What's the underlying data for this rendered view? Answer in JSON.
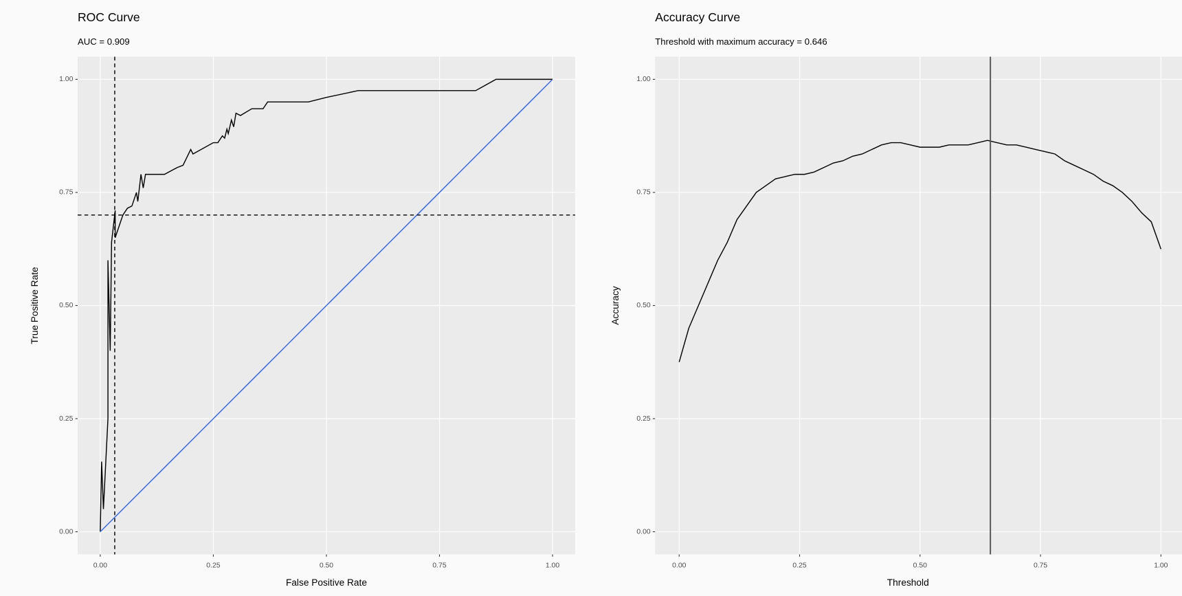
{
  "chart_data": [
    {
      "type": "line",
      "title": "ROC Curve",
      "subtitle": "AUC = 0.909",
      "x_label": "False Positive Rate",
      "y_label": "True Positive Rate",
      "xlim": [
        -0.05,
        1.05
      ],
      "ylim": [
        -0.05,
        1.05
      ],
      "xticks": [
        {
          "value": 0,
          "label": "0.00"
        },
        {
          "value": 0.25,
          "label": "0.25"
        },
        {
          "value": 0.5,
          "label": "0.50"
        },
        {
          "value": 0.75,
          "label": "0.75"
        },
        {
          "value": 1,
          "label": "1.00"
        }
      ],
      "yticks": [
        {
          "value": 0,
          "label": "0.00"
        },
        {
          "value": 0.25,
          "label": "0.25"
        },
        {
          "value": 0.5,
          "label": "0.50"
        },
        {
          "value": 0.75,
          "label": "0.75"
        },
        {
          "value": 1,
          "label": "1.00"
        }
      ],
      "grid": true,
      "series": [
        {
          "color": "#000000",
          "x": [
            0,
            0.003,
            0.007,
            0.017,
            0.017,
            0.022,
            0.025,
            0.033,
            0.033,
            0.05,
            0.06,
            0.07,
            0.08,
            0.083,
            0.09,
            0.095,
            0.1,
            0.142,
            0.17,
            0.183,
            0.2,
            0.205,
            0.25,
            0.26,
            0.27,
            0.275,
            0.28,
            0.283,
            0.29,
            0.295,
            0.3,
            0.31,
            0.335,
            0.36,
            0.37,
            0.46,
            0.5,
            0.57,
            0.83,
            0.875,
            1
          ],
          "values": [
            0,
            0.155,
            0.05,
            0.25,
            0.6,
            0.4,
            0.64,
            0.71,
            0.65,
            0.7,
            0.715,
            0.72,
            0.75,
            0.73,
            0.79,
            0.76,
            0.79,
            0.79,
            0.805,
            0.81,
            0.845,
            0.835,
            0.86,
            0.86,
            0.875,
            0.87,
            0.89,
            0.88,
            0.91,
            0.895,
            0.925,
            0.92,
            0.935,
            0.935,
            0.95,
            0.95,
            0.96,
            0.975,
            0.975,
            1,
            1
          ]
        },
        {
          "color": "#3366ff",
          "x": [
            0,
            1
          ],
          "values": [
            0,
            1
          ]
        }
      ],
      "vline": {
        "value": 0.032,
        "dashed": true,
        "color": "#000000"
      },
      "hline": {
        "value": 0.7,
        "dashed": true,
        "color": "#000000"
      }
    },
    {
      "type": "line",
      "title": "Accuracy Curve",
      "subtitle": "Threshold with maximum accuracy = 0.646",
      "x_label": "Threshold",
      "y_label": "Accuracy",
      "xlim": [
        -0.05,
        1.05
      ],
      "ylim": [
        -0.05,
        1.05
      ],
      "xticks": [
        {
          "value": 0,
          "label": "0.00"
        },
        {
          "value": 0.25,
          "label": "0.25"
        },
        {
          "value": 0.5,
          "label": "0.50"
        },
        {
          "value": 0.75,
          "label": "0.75"
        },
        {
          "value": 1,
          "label": "1.00"
        }
      ],
      "yticks": [
        {
          "value": 0,
          "label": "0.00"
        },
        {
          "value": 0.25,
          "label": "0.25"
        },
        {
          "value": 0.5,
          "label": "0.50"
        },
        {
          "value": 0.75,
          "label": "0.75"
        },
        {
          "value": 1,
          "label": "1.00"
        }
      ],
      "grid": true,
      "series": [
        {
          "color": "#000000",
          "x": [
            0,
            0.02,
            0.04,
            0.06,
            0.08,
            0.1,
            0.12,
            0.14,
            0.16,
            0.18,
            0.2,
            0.22,
            0.24,
            0.26,
            0.28,
            0.3,
            0.32,
            0.34,
            0.36,
            0.38,
            0.4,
            0.42,
            0.44,
            0.46,
            0.48,
            0.5,
            0.52,
            0.54,
            0.56,
            0.58,
            0.6,
            0.62,
            0.64,
            0.66,
            0.68,
            0.7,
            0.72,
            0.74,
            0.76,
            0.78,
            0.8,
            0.82,
            0.84,
            0.86,
            0.88,
            0.9,
            0.92,
            0.94,
            0.96,
            0.98,
            1
          ],
          "values": [
            0.375,
            0.45,
            0.5,
            0.55,
            0.6,
            0.64,
            0.69,
            0.72,
            0.75,
            0.765,
            0.78,
            0.785,
            0.79,
            0.79,
            0.795,
            0.805,
            0.815,
            0.82,
            0.83,
            0.835,
            0.845,
            0.855,
            0.86,
            0.86,
            0.855,
            0.85,
            0.85,
            0.85,
            0.855,
            0.855,
            0.855,
            0.86,
            0.865,
            0.86,
            0.855,
            0.855,
            0.85,
            0.845,
            0.84,
            0.835,
            0.82,
            0.81,
            0.8,
            0.79,
            0.775,
            0.765,
            0.75,
            0.73,
            0.705,
            0.685,
            0.625
          ]
        }
      ],
      "vline": {
        "value": 0.646,
        "dashed": false,
        "color": "#555555"
      }
    }
  ]
}
